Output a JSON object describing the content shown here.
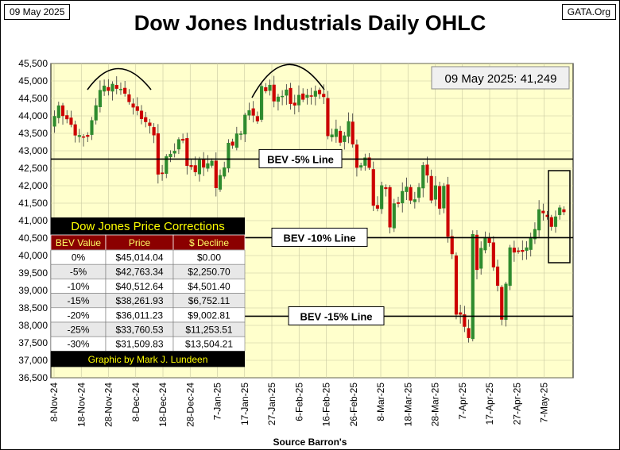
{
  "header": {
    "date_label": "09 May 2025",
    "site_label": "GATA.Org",
    "title": "Dow Jones Industrials Daily OHLC",
    "source": "Source Barron's"
  },
  "last_close_box": "09 May 2025:  41,249",
  "bev_lines": [
    {
      "label": "BEV  -5% Line",
      "value": 42763.34
    },
    {
      "label": "BEV  -10% Line",
      "value": 40512.64
    },
    {
      "label": "BEV  -15% Line",
      "value": 38261.93
    }
  ],
  "corrections_table": {
    "title": "Dow Jones Price Corrections",
    "headers": [
      "BEV Value",
      "Price",
      "$ Decline"
    ],
    "rows": [
      [
        "0%",
        "$45,014.04",
        "$0.00"
      ],
      [
        "-5%",
        "$42,763.34",
        "$2,250.70"
      ],
      [
        "-10%",
        "$40,512.64",
        "$4,501.40"
      ],
      [
        "-15%",
        "$38,261.93",
        "$6,752.11"
      ],
      [
        "-20%",
        "$36,011.23",
        "$9,002.81"
      ],
      [
        "-25%",
        "$33,760.53",
        "$11,253.51"
      ],
      [
        "-30%",
        "$31,509.83",
        "$13,504.21"
      ]
    ],
    "footer": "Graphic by Mark J. Lundeen"
  },
  "colors": {
    "plot_bg": "#ffffcc",
    "up": "#2e8b2e",
    "down": "#cc0000",
    "table_title_bg": "#000000",
    "table_title_fg": "#ffff00",
    "table_header_bg": "#8b0000"
  },
  "chart_data": {
    "type": "ohlc",
    "ylim": [
      36500,
      45500
    ],
    "y_ticks": [
      36500,
      37000,
      37500,
      38000,
      38500,
      39000,
      39500,
      40000,
      40500,
      41000,
      41500,
      42000,
      42500,
      43000,
      43500,
      44000,
      44500,
      45000,
      45500
    ],
    "x_tick_labels": [
      "8-Nov-24",
      "18-Nov-24",
      "28-Nov-24",
      "8-Dec-24",
      "18-Dec-24",
      "28-Dec-24",
      "7-Jan-25",
      "17-Jan-25",
      "27-Jan-25",
      "6-Feb-25",
      "16-Feb-25",
      "26-Feb-25",
      "8-Mar-25",
      "18-Mar-25",
      "28-Mar-25",
      "7-Apr-25",
      "17-Apr-25",
      "27-Apr-25",
      "7-May-25"
    ],
    "grid": true,
    "closes": [
      43989,
      44293,
      44001,
      43910,
      43751,
      43445,
      43444,
      43390,
      43408,
      43870,
      44296,
      44736,
      44860,
      44722,
      44911,
      44782,
      44765,
      44642,
      44401,
      44247,
      44149,
      43915,
      43829,
      43717,
      43449,
      42327,
      42342,
      42840,
      42906,
      42992,
      43325,
      43297,
      42573,
      42544,
      42392,
      42732,
      42528,
      42635,
      42707,
      41938,
      42297,
      42519,
      43221,
      43153,
      43488,
      43487,
      44025,
      44156,
      44014,
      43850,
      44850,
      44713,
      44882,
      44421,
      44544,
      44566,
      44747,
      44348,
      44303,
      44594,
      44470,
      44593,
      44556,
      44711,
      44628,
      44546,
      43428,
      43461,
      43621,
      43239,
      43433,
      43841,
      43191,
      42521,
      42580,
      42801,
      42520,
      41433,
      41350,
      42006,
      41911,
      40813,
      41488,
      41488,
      41841,
      41965,
      41581,
      41604,
      41953,
      42583,
      42299,
      41584,
      42002,
      41350,
      41989,
      40546,
      40046,
      38315,
      38315,
      37966,
      37645,
      40608,
      39594,
      40212,
      40525,
      40368,
      39669,
      39142,
      38171,
      39187,
      40227,
      40093,
      40113,
      40114,
      40227,
      40527,
      40752,
      41318,
      41218,
      41114,
      40829,
      41113,
      41368,
      41249
    ],
    "o_seed": "derived: open = previous close; high/low extend beyond body"
  }
}
